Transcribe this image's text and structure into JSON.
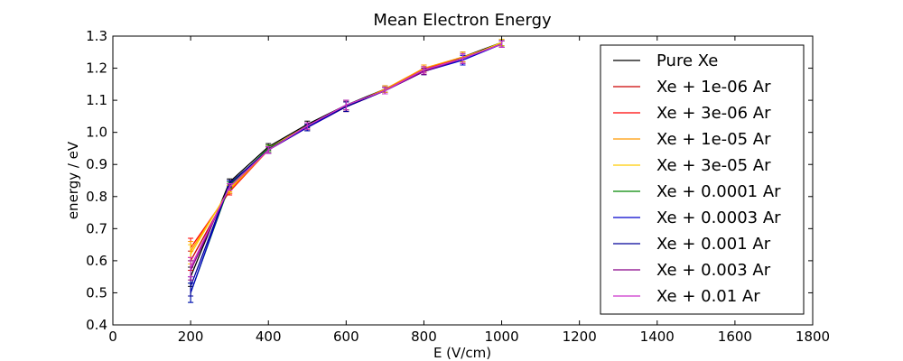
{
  "chart_data": {
    "type": "line",
    "title": "Mean Electron Energy",
    "xlabel": "E (V/cm)",
    "ylabel": "energy / eV",
    "xlim": [
      0,
      1800
    ],
    "ylim": [
      0.4,
      1.3
    ],
    "xticks": [
      0,
      200,
      400,
      600,
      800,
      1000,
      1200,
      1400,
      1600,
      1800
    ],
    "yticks": [
      0.4,
      0.5,
      0.6,
      0.7,
      0.8,
      0.9,
      1.0,
      1.1,
      1.2,
      1.3
    ],
    "ytick_labels": [
      "0.4",
      "0.5",
      "0.6",
      "0.7",
      "0.8",
      "0.9",
      "1.0",
      "1.1",
      "1.2",
      "1.3"
    ],
    "grid": false,
    "legend_position": "right",
    "x": [
      200,
      300,
      400,
      500,
      600,
      700,
      800,
      900,
      1000
    ],
    "series": [
      {
        "name": "Pure Xe",
        "color": "#000000",
        "values": [
          0.55,
          0.845,
          0.955,
          1.025,
          1.085,
          1.135,
          1.195,
          1.235,
          1.28
        ],
        "errors": [
          0.03,
          0.01,
          0.01,
          0.01,
          0.015,
          0.01,
          0.01,
          0.015,
          0.01
        ]
      },
      {
        "name": "Xe + 1e-06 Ar",
        "color": "#cc0000",
        "values": [
          0.6,
          0.82,
          0.95,
          1.02,
          1.08,
          1.13,
          1.195,
          1.23,
          1.275
        ],
        "errors": [
          0.03,
          0.01,
          0.01,
          0.01,
          0.015,
          0.01,
          0.01,
          0.015,
          0.01
        ]
      },
      {
        "name": "Xe + 3e-06 Ar",
        "color": "#ff0000",
        "values": [
          0.64,
          0.815,
          0.945,
          1.015,
          1.08,
          1.13,
          1.2,
          1.23,
          1.275
        ],
        "errors": [
          0.03,
          0.01,
          0.01,
          0.01,
          0.015,
          0.01,
          0.01,
          0.015,
          0.01
        ]
      },
      {
        "name": "Xe + 1e-05 Ar",
        "color": "#ff9900",
        "values": [
          0.63,
          0.82,
          0.945,
          1.02,
          1.08,
          1.135,
          1.2,
          1.235,
          1.275
        ],
        "errors": [
          0.03,
          0.01,
          0.01,
          0.01,
          0.015,
          0.01,
          0.01,
          0.015,
          0.01
        ]
      },
      {
        "name": "Xe + 3e-05 Ar",
        "color": "#ffcc00",
        "values": [
          0.62,
          0.825,
          0.95,
          1.02,
          1.085,
          1.13,
          1.195,
          1.23,
          1.28
        ],
        "errors": [
          0.03,
          0.01,
          0.01,
          0.01,
          0.015,
          0.01,
          0.01,
          0.015,
          0.01
        ]
      },
      {
        "name": "Xe + 0.0001 Ar",
        "color": "#008800",
        "values": [
          0.5,
          0.835,
          0.95,
          1.015,
          1.085,
          1.13,
          1.19,
          1.23,
          1.275
        ],
        "errors": [
          0.03,
          0.01,
          0.01,
          0.01,
          0.015,
          0.01,
          0.01,
          0.015,
          0.01
        ]
      },
      {
        "name": "Xe + 0.0003 Ar",
        "color": "#0000cc",
        "values": [
          0.5,
          0.84,
          0.945,
          1.015,
          1.08,
          1.13,
          1.19,
          1.225,
          1.275
        ],
        "errors": [
          0.03,
          0.01,
          0.01,
          0.01,
          0.015,
          0.01,
          0.01,
          0.015,
          0.01
        ]
      },
      {
        "name": "Xe + 0.001 Ar",
        "color": "#000099",
        "values": [
          0.52,
          0.84,
          0.945,
          1.02,
          1.08,
          1.13,
          1.19,
          1.23,
          1.275
        ],
        "errors": [
          0.03,
          0.01,
          0.01,
          0.01,
          0.015,
          0.01,
          0.01,
          0.015,
          0.01
        ]
      },
      {
        "name": "Xe + 0.003 Ar",
        "color": "#880088",
        "values": [
          0.57,
          0.83,
          0.945,
          1.02,
          1.085,
          1.13,
          1.19,
          1.23,
          1.275
        ],
        "errors": [
          0.03,
          0.01,
          0.01,
          0.01,
          0.015,
          0.01,
          0.01,
          0.015,
          0.01
        ]
      },
      {
        "name": "Xe + 0.01 Ar",
        "color": "#cc33cc",
        "values": [
          0.58,
          0.83,
          0.945,
          1.02,
          1.085,
          1.13,
          1.195,
          1.23,
          1.275
        ],
        "errors": [
          0.03,
          0.01,
          0.01,
          0.01,
          0.015,
          0.01,
          0.01,
          0.015,
          0.01
        ]
      }
    ]
  }
}
